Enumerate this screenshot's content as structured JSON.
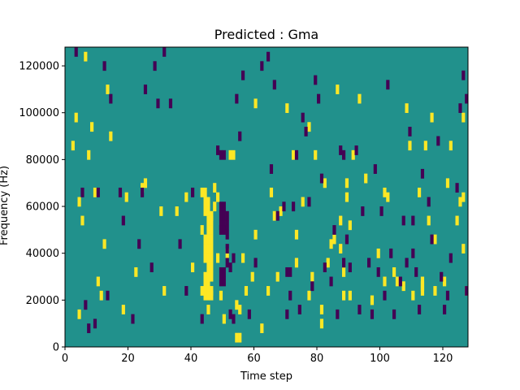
{
  "chart_data": {
    "type": "heatmap",
    "title": "Predicted : Gma",
    "xlabel": "Time step",
    "ylabel": "Frequency (Hz)",
    "xlim": [
      0,
      128
    ],
    "ylim": [
      0,
      128000
    ],
    "x_ticks": [
      0,
      20,
      40,
      60,
      80,
      100,
      120
    ],
    "y_ticks": [
      0,
      20000,
      40000,
      60000,
      80000,
      100000,
      120000
    ],
    "grid": false,
    "colormap": "viridis",
    "colors": {
      "background": "#21918c",
      "high": "#fde725",
      "low": "#440154"
    },
    "cell_height_hz": 4000,
    "yellow_cells": [
      [
        2,
        84000
      ],
      [
        3,
        96000
      ],
      [
        4,
        12000
      ],
      [
        4,
        60000
      ],
      [
        5,
        52000
      ],
      [
        6,
        122000
      ],
      [
        7,
        80000
      ],
      [
        8,
        92000
      ],
      [
        9,
        64000
      ],
      [
        10,
        26000
      ],
      [
        11,
        20000
      ],
      [
        12,
        42000
      ],
      [
        13,
        108000
      ],
      [
        14,
        88000
      ],
      [
        18,
        14000
      ],
      [
        19,
        62000
      ],
      [
        22,
        30000
      ],
      [
        24,
        66000
      ],
      [
        25,
        68000
      ],
      [
        30,
        56000
      ],
      [
        31,
        22000
      ],
      [
        35,
        56000
      ],
      [
        38,
        62000
      ],
      [
        40,
        32000
      ],
      [
        43,
        22000
      ],
      [
        43,
        48000
      ],
      [
        43,
        64000
      ],
      [
        44,
        20000
      ],
      [
        44,
        22000
      ],
      [
        44,
        24000
      ],
      [
        44,
        28000
      ],
      [
        44,
        36000
      ],
      [
        44,
        40000
      ],
      [
        44,
        44000
      ],
      [
        44,
        56000
      ],
      [
        44,
        58000
      ],
      [
        44,
        60000
      ],
      [
        44,
        64000
      ],
      [
        45,
        14000
      ],
      [
        45,
        20000
      ],
      [
        45,
        24000
      ],
      [
        45,
        28000
      ],
      [
        45,
        32000
      ],
      [
        45,
        36000
      ],
      [
        45,
        40000
      ],
      [
        45,
        44000
      ],
      [
        45,
        48000
      ],
      [
        45,
        52000
      ],
      [
        45,
        56000
      ],
      [
        45,
        60000
      ],
      [
        46,
        20000
      ],
      [
        46,
        22000
      ],
      [
        46,
        28000
      ],
      [
        46,
        32000
      ],
      [
        46,
        36000
      ],
      [
        46,
        40000
      ],
      [
        46,
        44000
      ],
      [
        46,
        48000
      ],
      [
        46,
        52000
      ],
      [
        46,
        54000
      ],
      [
        47,
        58000
      ],
      [
        47,
        66000
      ],
      [
        48,
        36000
      ],
      [
        48,
        62000
      ],
      [
        49,
        20000
      ],
      [
        50,
        10000
      ],
      [
        51,
        38000
      ],
      [
        52,
        80000
      ],
      [
        53,
        80000
      ],
      [
        54,
        2000
      ],
      [
        54,
        16000
      ],
      [
        55,
        2000
      ],
      [
        55,
        14000
      ],
      [
        56,
        36000
      ],
      [
        57,
        22000
      ],
      [
        59,
        28000
      ],
      [
        60,
        102000
      ],
      [
        60,
        46000
      ],
      [
        62,
        6000
      ],
      [
        64,
        22000
      ],
      [
        65,
        64000
      ],
      [
        66,
        54000
      ],
      [
        67,
        28000
      ],
      [
        68,
        56000
      ],
      [
        70,
        100000
      ],
      [
        72,
        80000
      ],
      [
        73,
        34000
      ],
      [
        73,
        46000
      ],
      [
        75,
        60000
      ],
      [
        77,
        92000
      ],
      [
        77,
        20000
      ],
      [
        78,
        28000
      ],
      [
        79,
        80000
      ],
      [
        81,
        8000
      ],
      [
        81,
        14000
      ],
      [
        82,
        68000
      ],
      [
        83,
        34000
      ],
      [
        84,
        42000
      ],
      [
        85,
        44000
      ],
      [
        86,
        108000
      ],
      [
        87,
        40000
      ],
      [
        87,
        52000
      ],
      [
        88,
        20000
      ],
      [
        88,
        30000
      ],
      [
        89,
        68000
      ],
      [
        89,
        62000
      ],
      [
        90,
        50000
      ],
      [
        90,
        20000
      ],
      [
        91,
        80000
      ],
      [
        93,
        104000
      ],
      [
        95,
        70000
      ],
      [
        97,
        18000
      ],
      [
        99,
        38000
      ],
      [
        101,
        26000
      ],
      [
        101,
        64000
      ],
      [
        102,
        62000
      ],
      [
        104,
        30000
      ],
      [
        105,
        26000
      ],
      [
        107,
        24000
      ],
      [
        108,
        100000
      ],
      [
        109,
        84000
      ],
      [
        110,
        20000
      ],
      [
        112,
        64000
      ],
      [
        113,
        22000
      ],
      [
        113,
        24000
      ],
      [
        113,
        26000
      ],
      [
        114,
        84000
      ],
      [
        115,
        52000
      ],
      [
        116,
        96000
      ],
      [
        117,
        44000
      ],
      [
        117,
        22000
      ],
      [
        120,
        26000
      ],
      [
        121,
        68000
      ],
      [
        122,
        84000
      ],
      [
        124,
        52000
      ],
      [
        125,
        60000
      ],
      [
        126,
        96000
      ],
      [
        126,
        40000
      ],
      [
        126,
        62000
      ],
      [
        127,
        22000
      ]
    ],
    "purple_cells": [
      [
        3,
        124000
      ],
      [
        5,
        64000
      ],
      [
        6,
        16000
      ],
      [
        7,
        6000
      ],
      [
        9,
        8000
      ],
      [
        10,
        64000
      ],
      [
        12,
        118000
      ],
      [
        13,
        20000
      ],
      [
        14,
        104000
      ],
      [
        17,
        64000
      ],
      [
        18,
        52000
      ],
      [
        21,
        10000
      ],
      [
        23,
        42000
      ],
      [
        24,
        64000
      ],
      [
        25,
        108000
      ],
      [
        27,
        32000
      ],
      [
        28,
        118000
      ],
      [
        29,
        102000
      ],
      [
        31,
        124000
      ],
      [
        33,
        102000
      ],
      [
        36,
        42000
      ],
      [
        38,
        22000
      ],
      [
        40,
        64000
      ],
      [
        43,
        10000
      ],
      [
        48,
        82000
      ],
      [
        49,
        80000
      ],
      [
        49,
        58000
      ],
      [
        49,
        54000
      ],
      [
        49,
        50000
      ],
      [
        49,
        48000
      ],
      [
        49,
        30000
      ],
      [
        49,
        26000
      ],
      [
        50,
        80000
      ],
      [
        50,
        58000
      ],
      [
        50,
        54000
      ],
      [
        50,
        50000
      ],
      [
        50,
        48000
      ],
      [
        50,
        30000
      ],
      [
        50,
        26000
      ],
      [
        51,
        54000
      ],
      [
        51,
        50000
      ],
      [
        51,
        46000
      ],
      [
        51,
        40000
      ],
      [
        51,
        34000
      ],
      [
        52,
        32000
      ],
      [
        52,
        12000
      ],
      [
        53,
        36000
      ],
      [
        53,
        10000
      ],
      [
        54,
        104000
      ],
      [
        55,
        88000
      ],
      [
        56,
        114000
      ],
      [
        58,
        12000
      ],
      [
        60,
        34000
      ],
      [
        62,
        118000
      ],
      [
        64,
        122000
      ],
      [
        65,
        74000
      ],
      [
        66,
        110000
      ],
      [
        67,
        54000
      ],
      [
        69,
        58000
      ],
      [
        70,
        30000
      ],
      [
        70,
        12000
      ],
      [
        71,
        30000
      ],
      [
        71,
        20000
      ],
      [
        72,
        58000
      ],
      [
        73,
        80000
      ],
      [
        74,
        14000
      ],
      [
        75,
        96000
      ],
      [
        76,
        90000
      ],
      [
        77,
        60000
      ],
      [
        78,
        24000
      ],
      [
        79,
        112000
      ],
      [
        80,
        104000
      ],
      [
        81,
        70000
      ],
      [
        82,
        32000
      ],
      [
        84,
        26000
      ],
      [
        85,
        48000
      ],
      [
        86,
        12000
      ],
      [
        87,
        82000
      ],
      [
        88,
        80000
      ],
      [
        88,
        34000
      ],
      [
        89,
        44000
      ],
      [
        90,
        32000
      ],
      [
        92,
        82000
      ],
      [
        93,
        14000
      ],
      [
        94,
        56000
      ],
      [
        96,
        34000
      ],
      [
        97,
        12000
      ],
      [
        98,
        74000
      ],
      [
        99,
        30000
      ],
      [
        100,
        56000
      ],
      [
        101,
        20000
      ],
      [
        102,
        110000
      ],
      [
        103,
        38000
      ],
      [
        104,
        12000
      ],
      [
        106,
        26000
      ],
      [
        107,
        52000
      ],
      [
        108,
        34000
      ],
      [
        109,
        90000
      ],
      [
        110,
        38000
      ],
      [
        110,
        52000
      ],
      [
        111,
        30000
      ],
      [
        112,
        14000
      ],
      [
        113,
        72000
      ],
      [
        115,
        60000
      ],
      [
        116,
        44000
      ],
      [
        118,
        86000
      ],
      [
        119,
        28000
      ],
      [
        120,
        14000
      ],
      [
        121,
        20000
      ],
      [
        122,
        36000
      ],
      [
        124,
        66000
      ],
      [
        125,
        100000
      ],
      [
        126,
        114000
      ],
      [
        127,
        22000
      ],
      [
        127,
        104000
      ]
    ]
  }
}
